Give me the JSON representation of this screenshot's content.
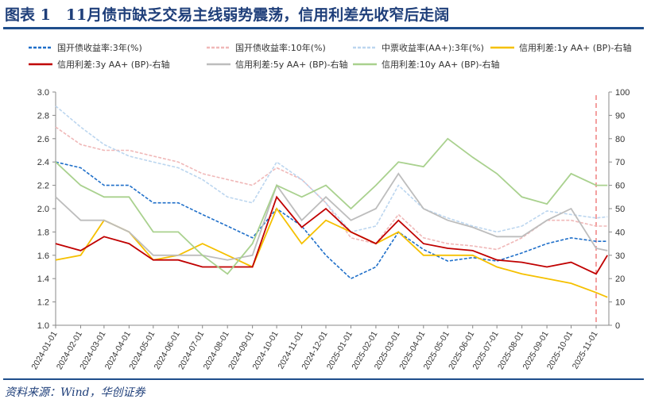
{
  "title": "图表 1　11月债市缺乏交易主线弱势震荡，信用利差先收窄后走阔",
  "source": "资料来源：Wind，华创证券",
  "chart_data": {
    "type": "line",
    "x": [
      "2024-01-01",
      "2024-02-01",
      "2024-03-01",
      "2024-04-01",
      "2024-05-01",
      "2024-06-01",
      "2024-07-01",
      "2024-08-01",
      "2024-09-01",
      "2024-10-01",
      "2024-11-01",
      "2024-12-01",
      "2025-01-01",
      "2025-02-01",
      "2025-03-01",
      "2025-04-01",
      "2025-05-01",
      "2025-06-01",
      "2025-07-01",
      "2025-08-01",
      "2025-09-01",
      "2025-10-01",
      "2025-11-01",
      "2025-11-15"
    ],
    "xticks": [
      "2024-01-01",
      "2024-02-01",
      "2024-03-01",
      "2024-04-01",
      "2024-05-01",
      "2024-06-01",
      "2024-07-01",
      "2024-08-01",
      "2024-09-01",
      "2024-10-01",
      "2024-11-01",
      "2024-12-01",
      "2025-01-01",
      "2025-02-01",
      "2025-03-01",
      "2025-04-01",
      "2025-05-01",
      "2025-06-01",
      "2025-07-01",
      "2025-08-01",
      "2025-09-01",
      "2025-10-01",
      "2025-11-01"
    ],
    "ylim_left": [
      1.0,
      3.0
    ],
    "yticks_left": [
      "1.0",
      "1.2",
      "1.4",
      "1.6",
      "1.8",
      "2.0",
      "2.2",
      "2.4",
      "2.6",
      "2.8",
      "3.0"
    ],
    "ylim_right": [
      0,
      100
    ],
    "yticks_right": [
      "0",
      "10",
      "20",
      "30",
      "40",
      "50",
      "60",
      "70",
      "80",
      "90",
      "100"
    ],
    "marker_line": "2025-11-01",
    "legend_placement": "top",
    "series": [
      {
        "name": "国开债收益率:3年(%)",
        "axis": "left",
        "color": "#1f6fc9",
        "dash": true,
        "values": [
          2.4,
          2.35,
          2.2,
          2.2,
          2.05,
          2.05,
          1.95,
          1.85,
          1.75,
          2.0,
          1.85,
          1.6,
          1.4,
          1.5,
          1.8,
          1.65,
          1.55,
          1.58,
          1.55,
          1.62,
          1.7,
          1.75,
          1.72,
          1.72
        ]
      },
      {
        "name": "国开债收益率:10年(%)",
        "axis": "left",
        "color": "#f0b8b8",
        "dash": true,
        "values": [
          2.7,
          2.55,
          2.5,
          2.5,
          2.45,
          2.4,
          2.3,
          2.25,
          2.2,
          2.35,
          2.25,
          2.05,
          1.75,
          1.7,
          1.95,
          1.75,
          1.7,
          1.68,
          1.65,
          1.75,
          1.9,
          1.9,
          1.85,
          1.85
        ]
      },
      {
        "name": "中票收益率(AA+):3年(%)",
        "axis": "left",
        "color": "#bcd6ef",
        "dash": true,
        "values": [
          2.88,
          2.7,
          2.55,
          2.45,
          2.4,
          2.35,
          2.25,
          2.1,
          2.05,
          2.4,
          2.25,
          2.05,
          1.8,
          1.85,
          2.2,
          2.0,
          1.92,
          1.85,
          1.8,
          1.85,
          1.98,
          1.95,
          1.92,
          1.93
        ]
      },
      {
        "name": "信用利差:1y AA+ (BP)-右轴",
        "axis": "right",
        "color": "#f5c000",
        "dash": false,
        "values": [
          28,
          30,
          45,
          40,
          28,
          30,
          35,
          30,
          25,
          50,
          35,
          45,
          40,
          35,
          40,
          30,
          30,
          30,
          25,
          22,
          20,
          18,
          14,
          12
        ]
      },
      {
        "name": "信用利差:3y AA+ (BP)-右轴",
        "axis": "right",
        "color": "#c00000",
        "dash": false,
        "values": [
          35,
          32,
          38,
          35,
          28,
          28,
          25,
          25,
          25,
          55,
          42,
          50,
          40,
          35,
          45,
          35,
          33,
          32,
          28,
          27,
          25,
          27,
          22,
          30
        ]
      },
      {
        "name": "信用利差:5y AA+ (BP)-右轴",
        "axis": "right",
        "color": "#bdbdbd",
        "dash": false,
        "values": [
          55,
          45,
          45,
          40,
          30,
          30,
          30,
          28,
          30,
          60,
          45,
          55,
          45,
          50,
          65,
          50,
          45,
          42,
          38,
          38,
          45,
          50,
          33,
          32
        ]
      },
      {
        "name": "信用利差:10y AA+ (BP)-右轴",
        "axis": "right",
        "color": "#a9d18e",
        "dash": false,
        "values": [
          70,
          60,
          55,
          55,
          40,
          40,
          30,
          22,
          35,
          60,
          55,
          60,
          50,
          60,
          70,
          68,
          80,
          72,
          65,
          55,
          52,
          65,
          60,
          60
        ]
      }
    ]
  }
}
